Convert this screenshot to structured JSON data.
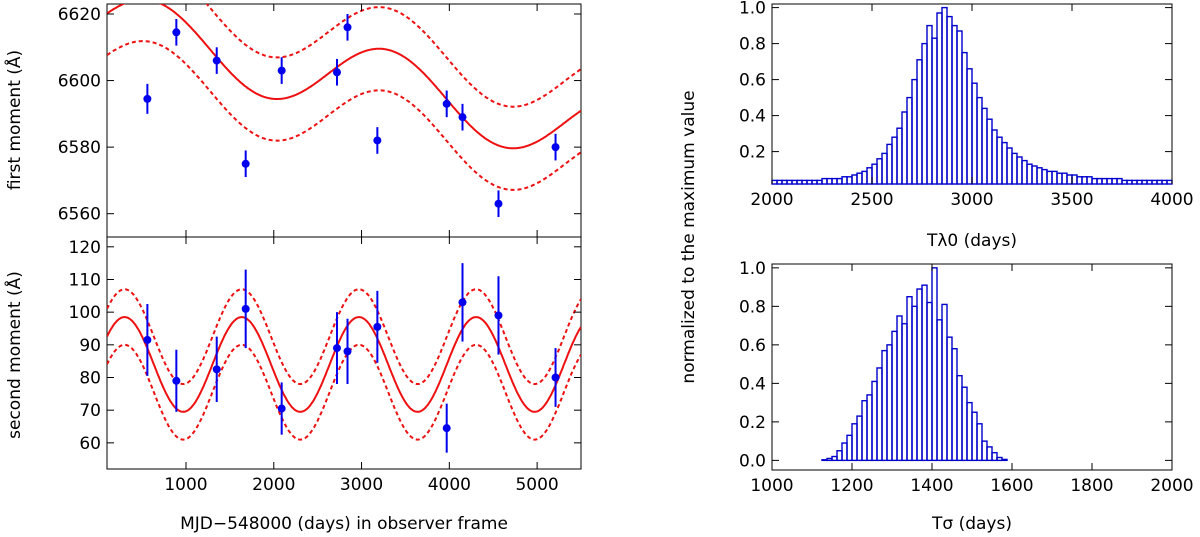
{
  "chart_data": [
    {
      "id": "first_moment",
      "type": "scatter",
      "ylabel": "first moment (Å)",
      "xlim": [
        100,
        5500
      ],
      "ylim": [
        6553,
        6623
      ],
      "xticks": [
        1000,
        2000,
        3000,
        4000,
        5000
      ],
      "yticks": [
        6560,
        6580,
        6600,
        6620
      ],
      "ytick_labels": [
        "6560",
        "6580",
        "6600",
        "6620"
      ],
      "points": [
        {
          "x": 560,
          "y": 6594.5,
          "err": 4.5
        },
        {
          "x": 890,
          "y": 6614.5,
          "err": 4
        },
        {
          "x": 1350,
          "y": 6606,
          "err": 4
        },
        {
          "x": 1680,
          "y": 6575,
          "err": 4
        },
        {
          "x": 2090,
          "y": 6603,
          "err": 4
        },
        {
          "x": 2720,
          "y": 6602.5,
          "err": 4
        },
        {
          "x": 2840,
          "y": 6616,
          "err": 4
        },
        {
          "x": 3180,
          "y": 6582,
          "err": 4
        },
        {
          "x": 3970,
          "y": 6593,
          "err": 4
        },
        {
          "x": 4150,
          "y": 6589,
          "err": 4
        },
        {
          "x": 4560,
          "y": 6563,
          "err": 4
        },
        {
          "x": 5210,
          "y": 6580,
          "err": 4
        }
      ],
      "model": {
        "mean": 6601,
        "amplitude": 11,
        "period": 2690,
        "phase_peak": 600,
        "trend_per_day": -0.0055,
        "band": 12.5
      }
    },
    {
      "id": "second_moment",
      "type": "scatter",
      "ylabel": "second moment (Å)",
      "xlabel": "MJD−548000 (days) in observer frame",
      "xlim": [
        100,
        5500
      ],
      "ylim": [
        52,
        123
      ],
      "xticks": [
        1000,
        2000,
        3000,
        4000,
        5000
      ],
      "xtick_labels": [
        "1000",
        "2000",
        "3000",
        "4000",
        "5000"
      ],
      "yticks": [
        60,
        70,
        80,
        90,
        100,
        110,
        120
      ],
      "ytick_labels": [
        "60",
        "70",
        "80",
        "90",
        "100",
        "110",
        "120"
      ],
      "points": [
        {
          "x": 560,
          "y": 91.5,
          "err": 11
        },
        {
          "x": 890,
          "y": 79,
          "err": 9.5
        },
        {
          "x": 1350,
          "y": 82.5,
          "err": 10
        },
        {
          "x": 1680,
          "y": 101,
          "err": 12
        },
        {
          "x": 2090,
          "y": 70.5,
          "err": 8
        },
        {
          "x": 2720,
          "y": 89,
          "err": 11
        },
        {
          "x": 2840,
          "y": 88,
          "err": 10
        },
        {
          "x": 3180,
          "y": 95.5,
          "err": 11
        },
        {
          "x": 3970,
          "y": 64.5,
          "err": 7.5
        },
        {
          "x": 4150,
          "y": 103,
          "err": 12
        },
        {
          "x": 4560,
          "y": 99,
          "err": 12
        },
        {
          "x": 5210,
          "y": 80,
          "err": 9
        }
      ],
      "model": {
        "mean": 84,
        "amplitude": 14.5,
        "period": 1335,
        "phase_peak": 300,
        "trend_per_day": 0,
        "band": 8.5
      }
    },
    {
      "id": "hist_T_lambda0",
      "type": "bar",
      "xlabel": "Tλ0 (days)",
      "xlim": [
        2000,
        4000
      ],
      "ylim": [
        0.02,
        1.02
      ],
      "xticks": [
        2000,
        2500,
        3000,
        3500,
        4000
      ],
      "xtick_labels": [
        "2000",
        "2500",
        "3000",
        "3500",
        "4000"
      ],
      "yticks": [
        0.2,
        0.4,
        0.6,
        0.8,
        1.0
      ],
      "ytick_labels": [
        "0.2",
        "0.4",
        "0.6",
        "0.8",
        "1.0"
      ],
      "bin_start": 2000,
      "bin_width": 25,
      "values": [
        0.04,
        0.04,
        0.04,
        0.04,
        0.04,
        0.04,
        0.04,
        0.04,
        0.04,
        0.04,
        0.05,
        0.05,
        0.05,
        0.05,
        0.06,
        0.06,
        0.07,
        0.08,
        0.09,
        0.11,
        0.13,
        0.16,
        0.19,
        0.24,
        0.28,
        0.33,
        0.42,
        0.5,
        0.6,
        0.71,
        0.8,
        0.9,
        0.83,
        0.97,
        1.0,
        0.95,
        0.9,
        0.87,
        0.75,
        0.66,
        0.58,
        0.5,
        0.44,
        0.38,
        0.32,
        0.28,
        0.25,
        0.22,
        0.19,
        0.17,
        0.15,
        0.13,
        0.12,
        0.11,
        0.1,
        0.09,
        0.09,
        0.08,
        0.08,
        0.07,
        0.07,
        0.06,
        0.06,
        0.06,
        0.05,
        0.05,
        0.05,
        0.05,
        0.05,
        0.05,
        0.04,
        0.04,
        0.04,
        0.04,
        0.04,
        0.04,
        0.04,
        0.04,
        0.04,
        0.04
      ]
    },
    {
      "id": "hist_T_sigma",
      "type": "bar",
      "xlabel": "Tσ (days)",
      "xlim": [
        1000,
        2000
      ],
      "ylim": [
        -0.05,
        1.02
      ],
      "xticks": [
        1000,
        1200,
        1400,
        1600,
        1800,
        2000
      ],
      "xtick_labels": [
        "1000",
        "1200",
        "1400",
        "1600",
        "1800",
        "2000"
      ],
      "yticks": [
        0,
        0.2,
        0.4,
        0.6,
        0.8,
        1.0
      ],
      "ytick_labels": [
        "0.0",
        "0.2",
        "0.4",
        "0.6",
        "0.8",
        "1.0"
      ],
      "bin_start": 1000,
      "bin_width": 12.5,
      "values": [
        0,
        0,
        0,
        0,
        0,
        0,
        0,
        0,
        0,
        0,
        0.003,
        0.01,
        0.02,
        0.05,
        0.09,
        0.13,
        0.19,
        0.23,
        0.31,
        0.34,
        0.41,
        0.48,
        0.57,
        0.6,
        0.67,
        0.75,
        0.71,
        0.85,
        0.8,
        0.89,
        0.91,
        0.82,
        1.0,
        0.73,
        0.81,
        0.64,
        0.58,
        0.44,
        0.38,
        0.3,
        0.25,
        0.19,
        0.1,
        0.07,
        0.04,
        0.015,
        0.005,
        0,
        0,
        0,
        0,
        0,
        0,
        0,
        0,
        0,
        0,
        0,
        0,
        0,
        0,
        0,
        0,
        0,
        0,
        0,
        0,
        0,
        0,
        0,
        0,
        0,
        0,
        0,
        0,
        0,
        0,
        0,
        0,
        0
      ]
    }
  ],
  "shared_ylabel": "normalized to the maximum value",
  "colors": {
    "points": "#0000ee",
    "model": "#ee1111",
    "hist": "#0000cc",
    "axes": "#000000"
  }
}
